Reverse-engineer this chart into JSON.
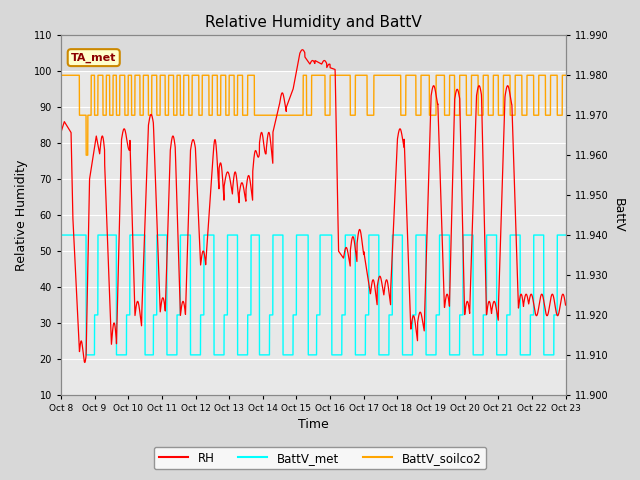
{
  "title": "Relative Humidity and BattV",
  "ylabel_left": "Relative Humidity",
  "ylabel_right": "BattV",
  "xlabel": "Time",
  "ylim_left": [
    10,
    110
  ],
  "ylim_right": [
    11.9,
    11.99
  ],
  "yticks_left": [
    10,
    20,
    30,
    40,
    50,
    60,
    70,
    80,
    90,
    100,
    110
  ],
  "yticks_right": [
    11.9,
    11.91,
    11.92,
    11.93,
    11.94,
    11.95,
    11.96,
    11.97,
    11.98,
    11.99
  ],
  "bg_color": "#d8d8d8",
  "plot_bg_color": "#e8e8e8",
  "grid_color": "#ffffff",
  "legend_labels": [
    "RH",
    "BattV_met",
    "BattV_soilco2"
  ],
  "legend_colors": [
    "red",
    "cyan",
    "orange"
  ],
  "annotation_text": "TA_met",
  "annotation_color": "#8b0000",
  "annotation_bg": "#ffffcc",
  "annotation_border": "#cc8800",
  "xtick_labels": [
    "Oct 8",
    "Oct 9",
    "Oct 10",
    "Oct 11",
    "Oct 12",
    "Oct 13",
    "Oct 14",
    "Oct 15",
    "Oct 16",
    "Oct 17",
    "Oct 18",
    "Oct 19",
    "Oct 20",
    "Oct 21",
    "Oct 22",
    "Oct 23"
  ],
  "n_days": 15,
  "n_points": 3000,
  "rh_color": "red",
  "bv_met_color": "cyan",
  "bv_soil_color": "orange"
}
